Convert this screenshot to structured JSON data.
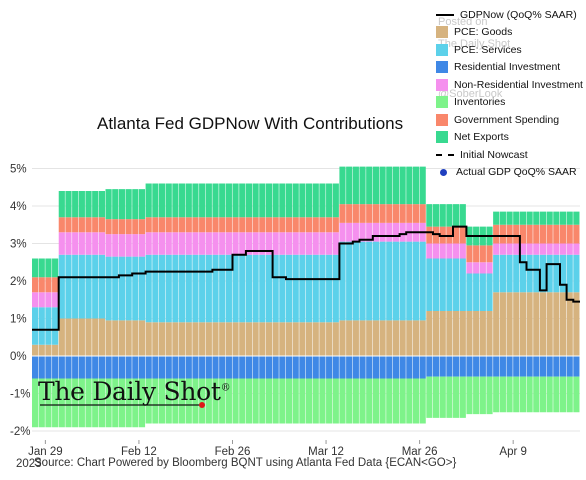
{
  "chart_data": {
    "type": "area",
    "title": "Atlanta Fed GDPNow With Contributions",
    "xlabel": "",
    "ylabel": "",
    "ylim": [
      -2,
      5
    ],
    "grid": true,
    "legend_position": "top-right",
    "x_ticks": [
      "Jan 29",
      "Feb 12",
      "Feb 26",
      "Mar 12",
      "Mar 26",
      "Apr 9"
    ],
    "y_ticks": [
      "-2%",
      "-1%",
      "0%",
      "1%",
      "2%",
      "3%",
      "4%",
      "5%"
    ],
    "y_tick_values": [
      -2,
      -1,
      0,
      1,
      2,
      3,
      4,
      5
    ],
    "year_label": "2023",
    "x_range": [
      "2023-01-27",
      "2023-04-19"
    ],
    "dates": [
      "2023-01-27",
      "2023-01-28",
      "2023-01-29",
      "2023-01-30",
      "2023-01-31",
      "2023-02-01",
      "2023-02-02",
      "2023-02-03",
      "2023-02-04",
      "2023-02-05",
      "2023-02-06",
      "2023-02-07",
      "2023-02-08",
      "2023-02-09",
      "2023-02-10",
      "2023-02-11",
      "2023-02-12",
      "2023-02-13",
      "2023-02-14",
      "2023-02-15",
      "2023-02-16",
      "2023-02-17",
      "2023-02-18",
      "2023-02-19",
      "2023-02-20",
      "2023-02-21",
      "2023-02-22",
      "2023-02-23",
      "2023-02-24",
      "2023-02-25",
      "2023-02-26",
      "2023-02-27",
      "2023-02-28",
      "2023-03-01",
      "2023-03-02",
      "2023-03-03",
      "2023-03-04",
      "2023-03-05",
      "2023-03-06",
      "2023-03-07",
      "2023-03-08",
      "2023-03-09",
      "2023-03-10",
      "2023-03-11",
      "2023-03-12",
      "2023-03-13",
      "2023-03-14",
      "2023-03-15",
      "2023-03-16",
      "2023-03-17",
      "2023-03-18",
      "2023-03-19",
      "2023-03-20",
      "2023-03-21",
      "2023-03-22",
      "2023-03-23",
      "2023-03-24",
      "2023-03-25",
      "2023-03-26",
      "2023-03-27",
      "2023-03-28",
      "2023-03-29",
      "2023-03-30",
      "2023-03-31",
      "2023-04-01",
      "2023-04-02",
      "2023-04-03",
      "2023-04-04",
      "2023-04-05",
      "2023-04-06",
      "2023-04-07",
      "2023-04-08",
      "2023-04-09",
      "2023-04-10",
      "2023-04-11",
      "2023-04-12",
      "2023-04-13",
      "2023-04-14",
      "2023-04-15",
      "2023-04-16",
      "2023-04-17",
      "2023-04-18"
    ],
    "series": [
      {
        "name": "PCE: Goods",
        "color": "#d6b37f",
        "values": [
          0.3,
          0.3,
          0.3,
          0.3,
          1.0,
          1.0,
          1.0,
          1.0,
          1.0,
          1.0,
          1.0,
          0.95,
          0.95,
          0.95,
          0.95,
          0.95,
          0.95,
          0.9,
          0.9,
          0.9,
          0.9,
          0.9,
          0.9,
          0.9,
          0.9,
          0.9,
          0.9,
          0.9,
          0.9,
          0.9,
          0.9,
          0.9,
          0.9,
          0.9,
          0.9,
          0.9,
          0.9,
          0.9,
          0.9,
          0.9,
          0.9,
          0.9,
          0.9,
          0.9,
          0.9,
          0.9,
          0.95,
          0.95,
          0.95,
          0.95,
          0.95,
          0.95,
          0.95,
          0.95,
          0.95,
          0.95,
          0.95,
          0.95,
          0.95,
          1.2,
          1.2,
          1.2,
          1.2,
          1.2,
          1.2,
          1.2,
          1.2,
          1.2,
          1.2,
          1.7,
          1.7,
          1.7,
          1.7,
          1.7,
          1.7,
          1.7,
          1.7,
          1.7,
          1.7,
          1.7,
          1.7,
          1.7
        ]
      },
      {
        "name": "PCE: Services",
        "color": "#5cd1ea",
        "values": [
          1.0,
          1.0,
          1.0,
          1.0,
          1.7,
          1.7,
          1.7,
          1.7,
          1.7,
          1.7,
          1.7,
          1.7,
          1.7,
          1.7,
          1.7,
          1.7,
          1.7,
          1.8,
          1.8,
          1.8,
          1.8,
          1.8,
          1.8,
          1.8,
          1.8,
          1.8,
          1.8,
          1.8,
          1.8,
          1.8,
          1.8,
          1.8,
          1.8,
          1.8,
          1.8,
          1.8,
          1.8,
          1.8,
          1.8,
          1.8,
          1.8,
          1.8,
          1.8,
          1.8,
          1.8,
          1.8,
          2.1,
          2.1,
          2.1,
          2.1,
          2.1,
          2.1,
          2.1,
          2.1,
          2.1,
          2.1,
          2.1,
          2.1,
          2.1,
          1.4,
          1.4,
          1.4,
          1.4,
          1.4,
          1.4,
          1.0,
          1.0,
          1.0,
          1.0,
          1.0,
          1.0,
          1.0,
          1.0,
          1.0,
          1.0,
          1.0,
          1.0,
          1.0,
          1.0,
          1.0,
          1.0,
          1.0
        ]
      },
      {
        "name": "Residential Investment",
        "color": "#3f88e6",
        "values": [
          -0.6,
          -0.6,
          -0.6,
          -0.6,
          -0.6,
          -0.6,
          -0.6,
          -0.6,
          -0.6,
          -0.6,
          -0.6,
          -0.6,
          -0.6,
          -0.6,
          -0.6,
          -0.6,
          -0.6,
          -0.6,
          -0.6,
          -0.6,
          -0.6,
          -0.6,
          -0.6,
          -0.6,
          -0.6,
          -0.6,
          -0.6,
          -0.6,
          -0.6,
          -0.6,
          -0.6,
          -0.6,
          -0.6,
          -0.6,
          -0.6,
          -0.6,
          -0.6,
          -0.6,
          -0.6,
          -0.6,
          -0.6,
          -0.6,
          -0.6,
          -0.6,
          -0.6,
          -0.6,
          -0.6,
          -0.6,
          -0.6,
          -0.6,
          -0.6,
          -0.6,
          -0.6,
          -0.6,
          -0.6,
          -0.6,
          -0.6,
          -0.6,
          -0.6,
          -0.55,
          -0.55,
          -0.55,
          -0.55,
          -0.55,
          -0.55,
          -0.55,
          -0.55,
          -0.55,
          -0.55,
          -0.55,
          -0.55,
          -0.55,
          -0.55,
          -0.55,
          -0.55,
          -0.55,
          -0.55,
          -0.55,
          -0.55,
          -0.55,
          -0.55,
          -0.55
        ]
      },
      {
        "name": "Non-Residential Investment",
        "color": "#f590ee",
        "values": [
          0.4,
          0.4,
          0.4,
          0.4,
          0.6,
          0.6,
          0.6,
          0.6,
          0.6,
          0.6,
          0.6,
          0.6,
          0.6,
          0.6,
          0.6,
          0.6,
          0.6,
          0.6,
          0.6,
          0.6,
          0.6,
          0.6,
          0.6,
          0.6,
          0.6,
          0.6,
          0.6,
          0.6,
          0.6,
          0.6,
          0.6,
          0.6,
          0.6,
          0.6,
          0.6,
          0.6,
          0.6,
          0.6,
          0.6,
          0.6,
          0.6,
          0.6,
          0.6,
          0.6,
          0.6,
          0.6,
          0.5,
          0.5,
          0.5,
          0.5,
          0.5,
          0.5,
          0.5,
          0.5,
          0.5,
          0.5,
          0.5,
          0.5,
          0.5,
          0.4,
          0.4,
          0.4,
          0.4,
          0.4,
          0.4,
          0.3,
          0.3,
          0.3,
          0.3,
          0.3,
          0.3,
          0.3,
          0.3,
          0.3,
          0.3,
          0.3,
          0.3,
          0.3,
          0.3,
          0.3,
          0.3,
          0.3
        ]
      },
      {
        "name": "Inventories",
        "color": "#7ef38a",
        "values": [
          -1.3,
          -1.3,
          -1.3,
          -1.3,
          -1.3,
          -1.3,
          -1.3,
          -1.3,
          -1.3,
          -1.3,
          -1.3,
          -1.3,
          -1.3,
          -1.3,
          -1.3,
          -1.3,
          -1.3,
          -1.2,
          -1.2,
          -1.2,
          -1.2,
          -1.2,
          -1.2,
          -1.2,
          -1.2,
          -1.2,
          -1.2,
          -1.2,
          -1.2,
          -1.2,
          -1.2,
          -1.2,
          -1.2,
          -1.2,
          -1.2,
          -1.2,
          -1.2,
          -1.2,
          -1.2,
          -1.2,
          -1.2,
          -1.2,
          -1.2,
          -1.2,
          -1.2,
          -1.2,
          -1.2,
          -1.2,
          -1.2,
          -1.2,
          -1.2,
          -1.2,
          -1.2,
          -1.2,
          -1.2,
          -1.2,
          -1.2,
          -1.2,
          -1.2,
          -1.1,
          -1.1,
          -1.1,
          -1.1,
          -1.1,
          -1.1,
          -1.0,
          -1.0,
          -1.0,
          -1.0,
          -0.95,
          -0.95,
          -0.95,
          -0.95,
          -0.95,
          -0.95,
          -0.95,
          -0.95,
          -0.95,
          -0.95,
          -0.95,
          -0.95,
          -0.95
        ]
      },
      {
        "name": "Government Spending",
        "color": "#f9876b",
        "values": [
          0.4,
          0.4,
          0.4,
          0.4,
          0.4,
          0.4,
          0.4,
          0.4,
          0.4,
          0.4,
          0.4,
          0.4,
          0.4,
          0.4,
          0.4,
          0.4,
          0.4,
          0.4,
          0.4,
          0.4,
          0.4,
          0.4,
          0.4,
          0.4,
          0.4,
          0.4,
          0.4,
          0.4,
          0.4,
          0.4,
          0.4,
          0.4,
          0.4,
          0.4,
          0.4,
          0.4,
          0.4,
          0.4,
          0.4,
          0.4,
          0.4,
          0.4,
          0.4,
          0.4,
          0.4,
          0.4,
          0.5,
          0.5,
          0.5,
          0.5,
          0.5,
          0.5,
          0.5,
          0.5,
          0.5,
          0.5,
          0.5,
          0.5,
          0.5,
          0.45,
          0.45,
          0.45,
          0.45,
          0.45,
          0.45,
          0.45,
          0.45,
          0.45,
          0.45,
          0.5,
          0.5,
          0.5,
          0.5,
          0.5,
          0.5,
          0.5,
          0.5,
          0.5,
          0.5,
          0.5,
          0.5,
          0.5
        ]
      },
      {
        "name": "Net Exports",
        "color": "#38d990",
        "values": [
          0.5,
          0.5,
          0.5,
          0.5,
          0.7,
          0.7,
          0.7,
          0.7,
          0.7,
          0.7,
          0.7,
          0.8,
          0.8,
          0.8,
          0.8,
          0.8,
          0.8,
          0.9,
          0.9,
          0.9,
          0.9,
          0.9,
          0.9,
          0.9,
          0.9,
          0.9,
          0.9,
          0.9,
          0.9,
          0.9,
          0.9,
          0.9,
          0.9,
          0.9,
          0.9,
          0.9,
          0.9,
          0.9,
          0.9,
          0.9,
          0.9,
          0.9,
          0.9,
          0.9,
          0.9,
          0.9,
          1.0,
          1.0,
          1.0,
          1.0,
          1.0,
          1.0,
          1.0,
          1.0,
          1.0,
          1.0,
          1.0,
          1.0,
          1.0,
          0.6,
          0.6,
          0.6,
          0.6,
          0.6,
          0.6,
          0.5,
          0.5,
          0.5,
          0.5,
          0.35,
          0.35,
          0.35,
          0.35,
          0.35,
          0.35,
          0.35,
          0.35,
          0.35,
          0.35,
          0.35,
          0.35,
          0.35
        ]
      }
    ],
    "lines": [
      {
        "name": "GDPNow (QoQ% SAAR)",
        "color": "#000000",
        "style": "solid",
        "values": [
          0.7,
          0.7,
          0.7,
          0.7,
          2.1,
          2.1,
          2.1,
          2.1,
          2.1,
          2.1,
          2.1,
          2.1,
          2.1,
          2.15,
          2.15,
          2.2,
          2.2,
          2.25,
          2.25,
          2.25,
          2.25,
          2.25,
          2.25,
          2.25,
          2.25,
          2.25,
          2.25,
          2.3,
          2.3,
          2.3,
          2.7,
          2.7,
          2.8,
          2.8,
          2.8,
          2.8,
          2.1,
          2.1,
          2.05,
          2.05,
          2.05,
          2.05,
          2.05,
          2.05,
          2.05,
          2.05,
          3.0,
          3.0,
          3.05,
          3.1,
          3.1,
          3.2,
          3.2,
          3.2,
          3.2,
          3.25,
          3.3,
          3.3,
          3.3,
          3.3,
          3.25,
          3.2,
          3.2,
          3.45,
          3.45,
          3.2,
          3.2,
          3.2,
          3.2,
          3.2,
          3.2,
          3.2,
          3.2,
          2.5,
          2.3,
          2.3,
          1.75,
          2.45,
          2.45,
          1.9,
          1.5,
          1.45
        ]
      }
    ],
    "legend_extra": [
      {
        "name": "Initial Nowcast",
        "style": "dashed"
      },
      {
        "name": "Actual GDP QoQ% SAAR",
        "style": "dot",
        "color": "#1f3fbf"
      }
    ]
  },
  "watermarks": [
    "Posted on",
    "The Daily Shot",
    "@SoberLook"
  ],
  "brand": {
    "logo_text": "The Daily Shot",
    "logo_mark": "®",
    "accent_color": "#e0191a"
  },
  "footer": {
    "source": "Source: Chart Powered by Bloomberg BQNT using Atlanta Fed Data   {ECAN<GO>}"
  }
}
